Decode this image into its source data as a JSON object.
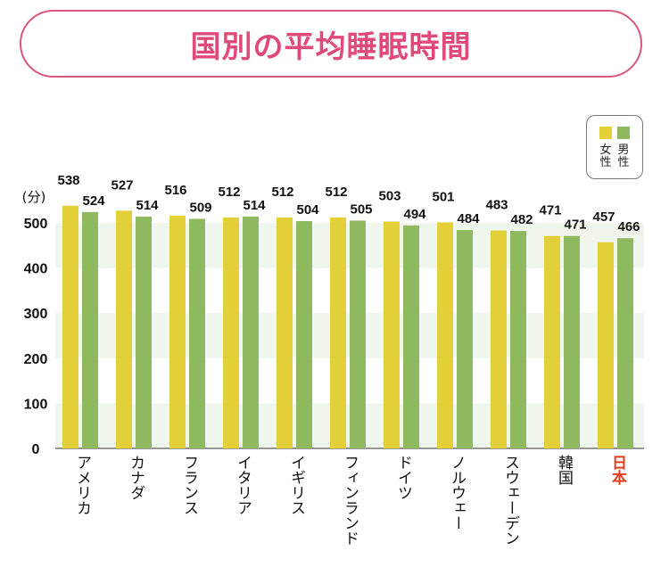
{
  "title": "国別の平均睡眠時間",
  "legend": {
    "female": "女性",
    "male": "男性"
  },
  "colors": {
    "female": "#e3cf38",
    "male": "#8fb95e",
    "band": "#f0f6ec",
    "japan": "#e0401f",
    "title": "#e04a78"
  },
  "chart_data": {
    "type": "bar",
    "title": "国別の平均睡眠時間",
    "ylabel": "(分)",
    "ylim": [
      0,
      500
    ],
    "yticks": [
      0,
      100,
      200,
      300,
      400,
      500
    ],
    "grid": "alternating bands",
    "legend_position": "top-right",
    "categories": [
      "アメリカ",
      "カナダ",
      "フランス",
      "イタリア",
      "イギリス",
      "フィンランド",
      "ドイツ",
      "ノルウェー",
      "スウェーデン",
      "韓国",
      "日本"
    ],
    "highlight": "日本",
    "series": [
      {
        "name": "女性",
        "values": [
          538,
          527,
          516,
          512,
          512,
          512,
          503,
          501,
          483,
          471,
          457
        ]
      },
      {
        "name": "男性",
        "values": [
          524,
          514,
          509,
          514,
          504,
          505,
          494,
          484,
          482,
          471,
          466
        ]
      }
    ]
  }
}
